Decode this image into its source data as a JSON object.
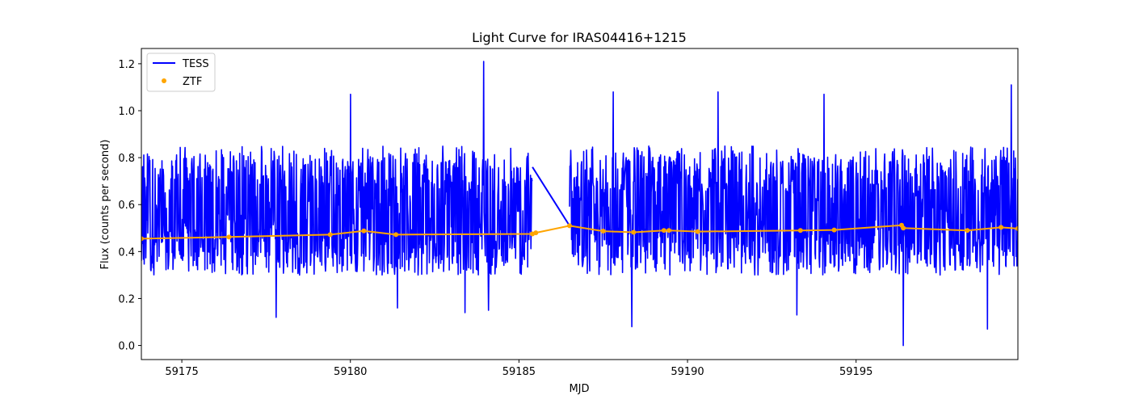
{
  "chart_data": {
    "type": "line",
    "title": "Light Curve for IRAS04416+1215",
    "xlabel": "MJD",
    "ylabel": "Flux (counts per second)",
    "xlim": [
      59173.8,
      59199.8
    ],
    "ylim": [
      -0.06,
      1.265
    ],
    "xticks": [
      59175,
      59180,
      59185,
      59190,
      59195
    ],
    "yticks": [
      0.0,
      0.2,
      0.4,
      0.6,
      0.8,
      1.0,
      1.2
    ],
    "ytick_labels": [
      "0.0",
      "0.2",
      "0.4",
      "0.6",
      "0.8",
      "1.0",
      "1.2"
    ],
    "grid": false,
    "legend_position": "top-left",
    "series": [
      {
        "name": "TESS",
        "kind": "line",
        "color": "#0000ff",
        "segments": [
          {
            "x_start": 59173.8,
            "x_end": 59185.4
          },
          {
            "x_start": 59186.5,
            "x_end": 59199.8
          }
        ],
        "gap_bridge": {
          "x": [
            59185.4,
            59186.5
          ],
          "y": [
            0.76,
            0.51
          ]
        },
        "typical_level": 0.57,
        "typical_min": 0.3,
        "typical_max": 0.85,
        "spikes": [
          {
            "x": 59180.0,
            "y": 1.07
          },
          {
            "x": 59183.95,
            "y": 1.21
          },
          {
            "x": 59187.8,
            "y": 1.08
          },
          {
            "x": 59190.9,
            "y": 1.08
          },
          {
            "x": 59194.05,
            "y": 1.07
          },
          {
            "x": 59199.6,
            "y": 1.11
          },
          {
            "x": 59196.4,
            "y": 0.0
          },
          {
            "x": 59188.35,
            "y": 0.08
          },
          {
            "x": 59198.9,
            "y": 0.07
          },
          {
            "x": 59177.8,
            "y": 0.12
          },
          {
            "x": 59183.4,
            "y": 0.14
          },
          {
            "x": 59193.25,
            "y": 0.13
          },
          {
            "x": 59181.4,
            "y": 0.16
          },
          {
            "x": 59184.1,
            "y": 0.15
          }
        ]
      },
      {
        "name": "ZTF",
        "kind": "scatter+line",
        "color": "#ffa500",
        "x": [
          59173.8,
          59176.4,
          59179.4,
          59180.4,
          59181.35,
          59185.4,
          59185.5,
          59186.5,
          59187.5,
          59188.4,
          59189.3,
          59189.45,
          59190.3,
          59193.35,
          59194.35,
          59196.35,
          59196.4,
          59198.3,
          59199.3,
          59199.8
        ],
        "y": [
          0.455,
          0.462,
          0.472,
          0.488,
          0.472,
          0.475,
          0.48,
          0.51,
          0.487,
          0.482,
          0.49,
          0.49,
          0.485,
          0.49,
          0.492,
          0.512,
          0.5,
          0.49,
          0.503,
          0.498
        ]
      }
    ]
  }
}
